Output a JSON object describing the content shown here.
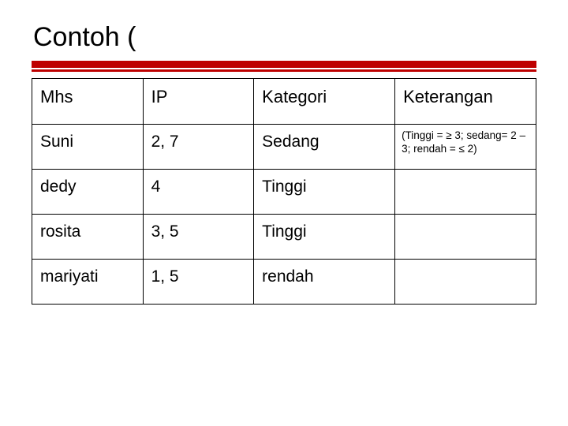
{
  "title": "Contoh (",
  "columns": [
    "Mhs",
    "IP",
    "Kategori",
    "Keterangan"
  ],
  "note": "(Tinggi = ≥ 3; sedang= 2 – 3; rendah = ≤ 2)",
  "rows": [
    {
      "mhs": "Suni",
      "ip": "2, 7",
      "kategori": "Sedang"
    },
    {
      "mhs": "dedy",
      "ip": "4",
      "kategori": "Tinggi"
    },
    {
      "mhs": "rosita",
      "ip": "3, 5",
      "kategori": "Tinggi"
    },
    {
      "mhs": "mariyati",
      "ip": "1, 5",
      "kategori": "rendah"
    }
  ],
  "style": {
    "accent_color": "#be0000",
    "border_color": "#000000",
    "background": "#ffffff",
    "title_fontsize": 34,
    "header_fontsize": 22,
    "cell_fontsize": 21,
    "note_fontsize": 13.5,
    "col_widths_pct": [
      22,
      22,
      28,
      28
    ]
  }
}
